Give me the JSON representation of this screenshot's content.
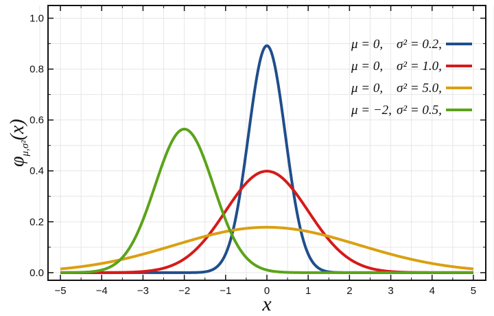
{
  "chart_data": {
    "type": "line",
    "title": "",
    "xlabel": "x",
    "ylabel": "φμ,σ²(x)",
    "ylabel_parts": {
      "base": "φ",
      "sub": "μ,σ²",
      "arg": "(x)"
    },
    "xlim": [
      -5.3,
      5.3
    ],
    "ylim": [
      -0.03,
      1.05
    ],
    "xticks": [
      -5,
      -4,
      -3,
      -2,
      -1,
      0,
      1,
      2,
      3,
      4,
      5
    ],
    "xtick_labels": [
      "−5",
      "−4",
      "−3",
      "−2",
      "−1",
      "0",
      "1",
      "2",
      "3",
      "4",
      "5"
    ],
    "yticks": [
      0.0,
      0.2,
      0.4,
      0.6,
      0.8,
      1.0
    ],
    "ytick_labels": [
      "0.0",
      "0.2",
      "0.4",
      "0.6",
      "0.8",
      "1.0"
    ],
    "grid": true,
    "legend_position": "top-right",
    "x_domain": [
      -5,
      5
    ],
    "series": [
      {
        "mu": 0,
        "sigma2": 0.2,
        "mu_label": "μ = 0,",
        "sigma_label": "σ² = 0.2,",
        "color": "#1f4e8c"
      },
      {
        "mu": 0,
        "sigma2": 1.0,
        "mu_label": "μ = 0,",
        "sigma_label": "σ² = 1.0,",
        "color": "#d61a1a"
      },
      {
        "mu": 0,
        "sigma2": 5.0,
        "mu_label": "μ = 0,",
        "sigma_label": "σ² = 5.0,",
        "color": "#d9a012"
      },
      {
        "mu": -2,
        "sigma2": 0.5,
        "mu_label": "μ = −2,",
        "sigma_label": "σ² = 0.5,",
        "color": "#5ba31a"
      }
    ]
  }
}
